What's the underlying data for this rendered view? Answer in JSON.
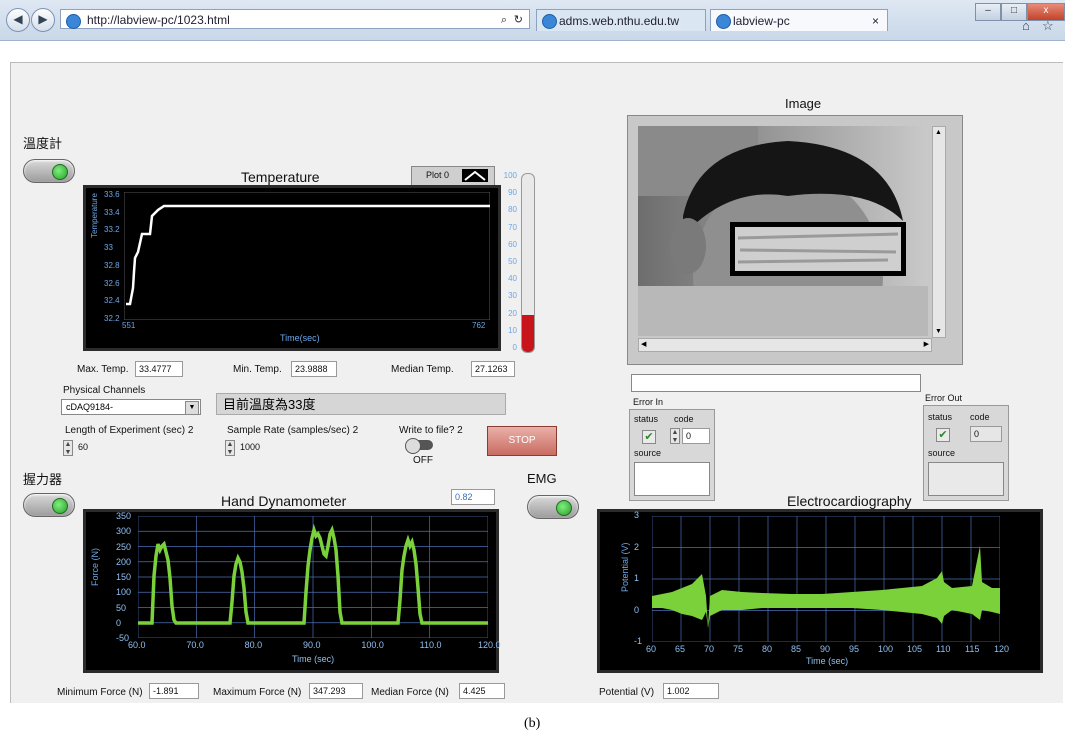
{
  "browser": {
    "url": "http://labview-pc/1023.html",
    "tab1": "adms.web.nthu.edu.tw",
    "tab2": "labview-pc",
    "tab_close": "×"
  },
  "temp_section": {
    "switch_label": "溫度計",
    "title": "Temperature",
    "plot_legend": "Plot 0",
    "y_axis_label": "Temperature",
    "x_axis_label": "Time(sec)",
    "y_ticks": [
      "33.6",
      "33.4",
      "33.2",
      "33",
      "32.8",
      "32.6",
      "32.4",
      "32.2"
    ],
    "x_ticks": [
      "551",
      "762"
    ],
    "thermo_ticks": [
      "100",
      "90",
      "80",
      "70",
      "60",
      "50",
      "40",
      "30",
      "20",
      "10",
      "0"
    ],
    "thermo_level": 0.21,
    "max_label": "Max. Temp.",
    "max_value": "33.4777",
    "min_label": "Min. Temp.",
    "min_value": "23.9888",
    "median_label": "Median Temp.",
    "median_value": "27.1263",
    "channels_label": "Physical Channels",
    "channel_value": "cDAQ9184-",
    "status_msg": "目前溫度為33度",
    "length_label": "Length of Experiment (sec) 2",
    "length_value": "60",
    "rate_label": "Sample Rate (samples/sec) 2",
    "rate_value": "1000",
    "write_label": "Write to file? 2",
    "write_state": "OFF",
    "stop_label": "STOP"
  },
  "image_section": {
    "title": "Image",
    "error_in_label": "Error In",
    "error_out_label": "Error Out",
    "status_label": "status",
    "code_label": "code",
    "source_label": "source",
    "code_in_value": "0",
    "code_out_value": "0"
  },
  "hand_section": {
    "switch_label": "握力器",
    "title": "Hand Dynamometer",
    "readout": "0.82",
    "y_axis_label": "Force (N)",
    "x_axis_label": "Time (sec)",
    "y_ticks": [
      "350",
      "300",
      "250",
      "200",
      "150",
      "100",
      "50",
      "0",
      "-50"
    ],
    "x_ticks": [
      "60.0",
      "70.0",
      "80.0",
      "90.0",
      "100.0",
      "110.0",
      "120.0"
    ],
    "min_label": "Minimum Force (N)",
    "min_value": "-1.891",
    "max_label": "Maximum Force (N)",
    "max_value": "347.293",
    "median_label": "Median Force (N)",
    "median_value": "4.425"
  },
  "ecg_section": {
    "switch_label": "EMG",
    "title": "Electrocardiography",
    "y_axis_label": "Potential (V)",
    "x_axis_label": "Time (sec)",
    "y_ticks": [
      "3",
      "2",
      "1",
      "0",
      "-1"
    ],
    "x_ticks": [
      "60",
      "65",
      "70",
      "75",
      "80",
      "85",
      "90",
      "95",
      "100",
      "105",
      "110",
      "115",
      "120"
    ],
    "potential_label": "Potential (V)",
    "potential_value": "1.002"
  },
  "caption": "(b)",
  "colors": {
    "plot_bg": "#000000",
    "trace_green": "#7bd13a",
    "trace_white": "#ffffff",
    "grid_blue": "#4b6fb5",
    "tick_blue": "#6aa7e8",
    "thermo_red": "#c8141b"
  },
  "icons": [
    "back-icon",
    "forward-icon",
    "ie-icon",
    "search-icon",
    "refresh-icon",
    "home-icon",
    "star-icon",
    "dropdown-arrow-icon",
    "check-icon"
  ]
}
